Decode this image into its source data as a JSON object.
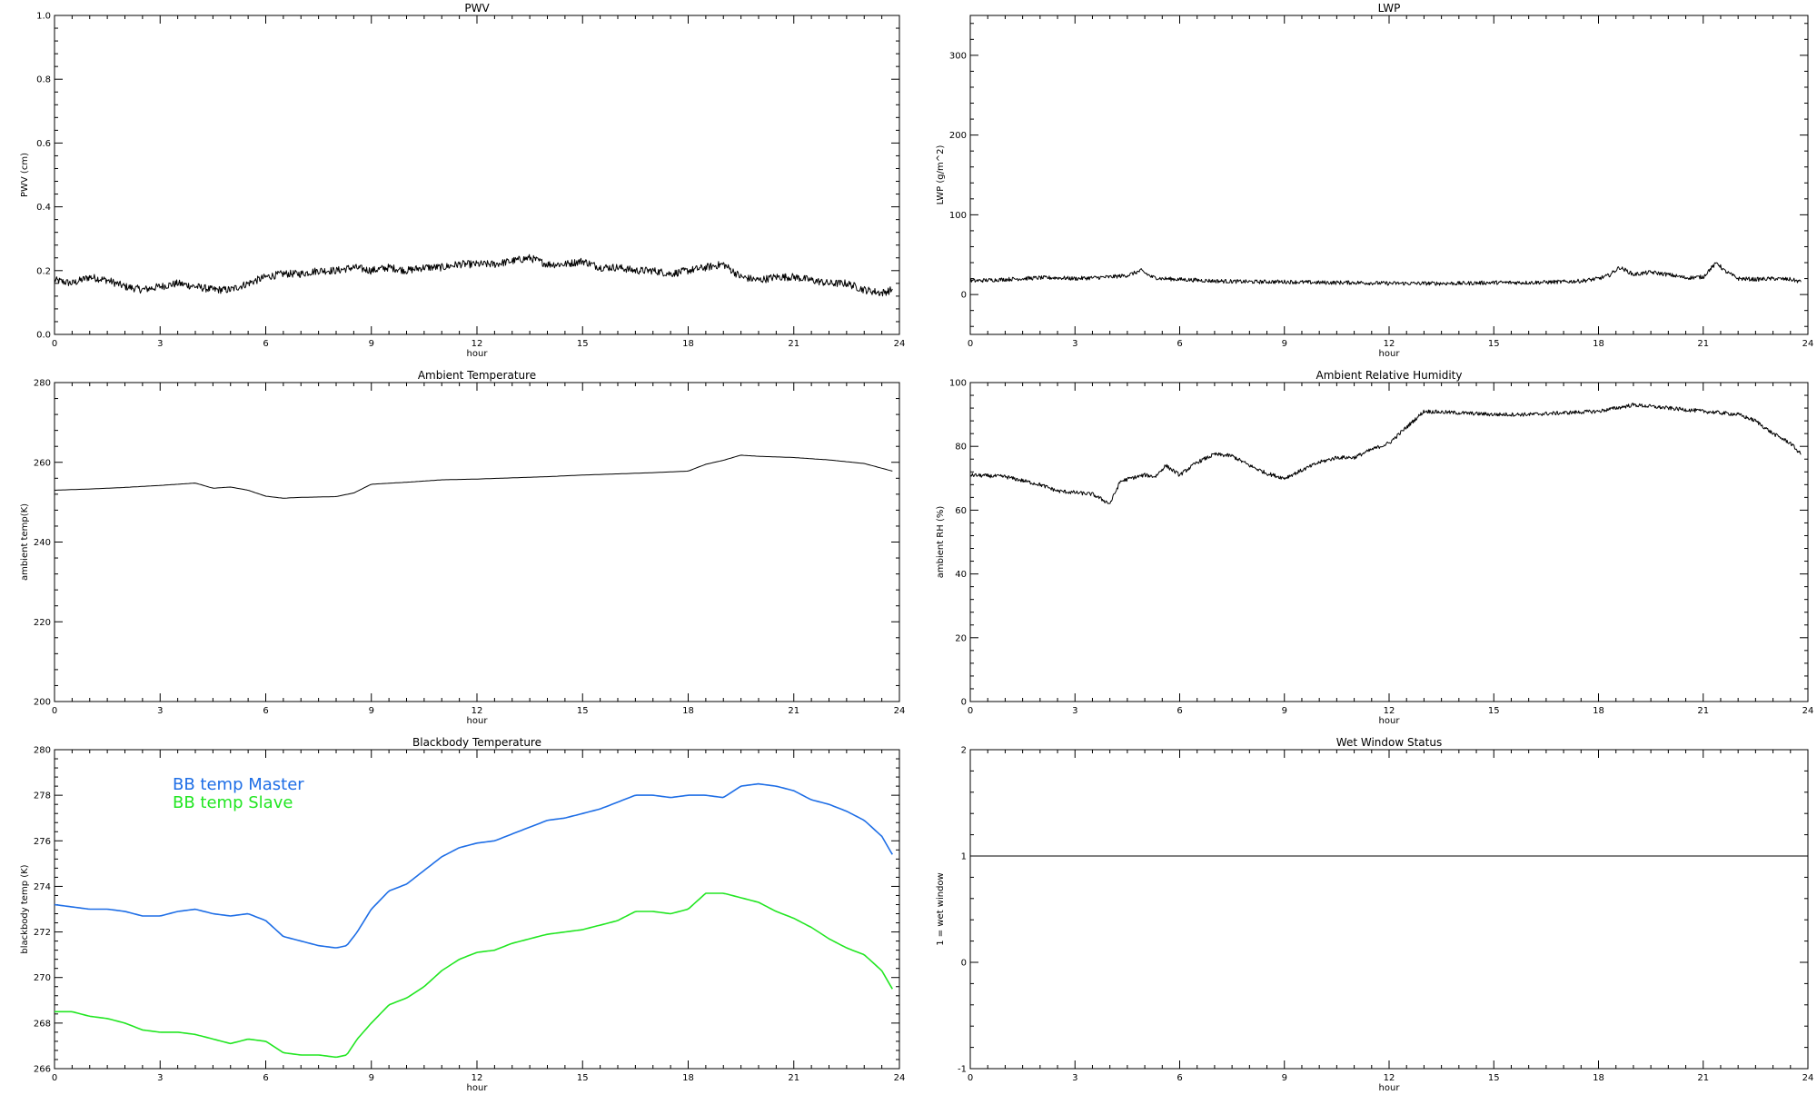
{
  "chart_data": [
    {
      "id": "pwv",
      "type": "line",
      "title": "PWV",
      "xlabel": "hour",
      "ylabel": "PWV (cm)",
      "xlim": [
        0,
        24
      ],
      "ylim": [
        0.0,
        1.0
      ],
      "xticks": [
        0,
        3,
        6,
        9,
        12,
        15,
        18,
        21,
        24
      ],
      "xtick_labels": [
        "0",
        "3",
        "6",
        "9",
        "12",
        "15",
        "18",
        "21",
        "24"
      ],
      "yticks": [
        0.0,
        0.2,
        0.4,
        0.6,
        0.8,
        1.0
      ],
      "ytick_labels": [
        "0.0",
        "0.2",
        "0.4",
        "0.6",
        "0.8",
        "1.0"
      ],
      "noise": 0.012,
      "series": [
        {
          "color": "#000000",
          "x": [
            0,
            0.5,
            1,
            1.5,
            2,
            2.5,
            3,
            3.5,
            4,
            4.5,
            5,
            5.5,
            6,
            6.5,
            7,
            7.5,
            8,
            8.5,
            9,
            9.5,
            10,
            10.5,
            11,
            11.5,
            12,
            12.5,
            13,
            13.5,
            14,
            14.5,
            15,
            15.5,
            16,
            16.5,
            17,
            17.5,
            18,
            18.5,
            19,
            19.5,
            20,
            20.5,
            21,
            21.5,
            22,
            22.5,
            23,
            23.5,
            23.8
          ],
          "y": [
            0.17,
            0.16,
            0.18,
            0.17,
            0.15,
            0.14,
            0.15,
            0.16,
            0.15,
            0.14,
            0.14,
            0.16,
            0.18,
            0.19,
            0.19,
            0.2,
            0.2,
            0.21,
            0.2,
            0.21,
            0.2,
            0.21,
            0.21,
            0.22,
            0.22,
            0.22,
            0.23,
            0.24,
            0.22,
            0.22,
            0.23,
            0.21,
            0.21,
            0.2,
            0.2,
            0.19,
            0.2,
            0.21,
            0.22,
            0.18,
            0.17,
            0.18,
            0.18,
            0.17,
            0.16,
            0.16,
            0.14,
            0.13,
            0.14
          ]
        }
      ]
    },
    {
      "id": "lwp",
      "type": "line",
      "title": "LWP",
      "xlabel": "hour",
      "ylabel": "LWP (g/m^2)",
      "xlim": [
        0,
        24
      ],
      "ylim": [
        -50,
        350
      ],
      "xticks": [
        0,
        3,
        6,
        9,
        12,
        15,
        18,
        21,
        24
      ],
      "xtick_labels": [
        "0",
        "3",
        "6",
        "9",
        "12",
        "15",
        "18",
        "21",
        "24"
      ],
      "yticks": [
        0,
        100,
        200,
        300
      ],
      "ytick_labels": [
        "0",
        "100",
        "200",
        "300"
      ],
      "noise": 2.5,
      "series": [
        {
          "color": "#000000",
          "x": [
            0,
            0.5,
            1,
            1.5,
            2,
            2.5,
            3,
            3.5,
            4,
            4.5,
            4.9,
            5.2,
            5.5,
            6,
            7,
            8,
            9,
            10,
            11,
            12,
            13,
            14,
            15,
            16,
            17,
            17.5,
            18,
            18.3,
            18.6,
            18.8,
            19,
            19.5,
            20,
            20.5,
            21,
            21.2,
            21.4,
            21.6,
            22,
            22.5,
            23,
            23.5,
            23.8
          ],
          "y": [
            17,
            18,
            19,
            20,
            21,
            21,
            20,
            21,
            22,
            24,
            30,
            22,
            20,
            19,
            17,
            16,
            16,
            15,
            15,
            14,
            14,
            14,
            15,
            15,
            16,
            17,
            20,
            24,
            34,
            30,
            25,
            28,
            25,
            21,
            22,
            32,
            40,
            30,
            20,
            19,
            20,
            19,
            16
          ]
        }
      ]
    },
    {
      "id": "ambient-temp",
      "type": "line",
      "title": "Ambient Temperature",
      "xlabel": "hour",
      "ylabel": "ambient temp(K)",
      "xlim": [
        0,
        24
      ],
      "ylim": [
        200,
        280
      ],
      "xticks": [
        0,
        3,
        6,
        9,
        12,
        15,
        18,
        21,
        24
      ],
      "xtick_labels": [
        "0",
        "3",
        "6",
        "9",
        "12",
        "15",
        "18",
        "21",
        "24"
      ],
      "yticks": [
        200,
        220,
        240,
        260,
        280
      ],
      "ytick_labels": [
        "200",
        "220",
        "240",
        "260",
        "280"
      ],
      "noise": 0,
      "series": [
        {
          "color": "#000000",
          "x": [
            0,
            1,
            2,
            3,
            4,
            4.5,
            5,
            5.5,
            6,
            6.5,
            7,
            7.5,
            8,
            8.5,
            9,
            10,
            11,
            12,
            13,
            14,
            15,
            16,
            17,
            18,
            18.5,
            19,
            19.5,
            20,
            21,
            22,
            23,
            23.8
          ],
          "y": [
            253,
            253.3,
            253.7,
            254.2,
            254.8,
            253.5,
            253.8,
            253,
            251.5,
            251,
            251.2,
            251.3,
            251.4,
            252.3,
            254.5,
            255,
            255.6,
            255.8,
            256.1,
            256.4,
            256.8,
            257.1,
            257.4,
            257.8,
            259.5,
            260.5,
            261.8,
            261.5,
            261.2,
            260.6,
            259.7,
            257.8
          ]
        }
      ]
    },
    {
      "id": "ambient-rh",
      "type": "line",
      "title": "Ambient Relative Humidity",
      "xlabel": "hour",
      "ylabel": "ambient RH (%)",
      "xlim": [
        0,
        24
      ],
      "ylim": [
        0,
        100
      ],
      "xticks": [
        0,
        3,
        6,
        9,
        12,
        15,
        18,
        21,
        24
      ],
      "xtick_labels": [
        "0",
        "3",
        "6",
        "9",
        "12",
        "15",
        "18",
        "21",
        "24"
      ],
      "yticks": [
        0,
        20,
        40,
        60,
        80,
        100
      ],
      "ytick_labels": [
        "0",
        "20",
        "40",
        "60",
        "80",
        "100"
      ],
      "noise": 0.6,
      "series": [
        {
          "color": "#000000",
          "x": [
            0,
            1,
            2,
            2.5,
            3,
            3.5,
            4,
            4.3,
            4.6,
            5,
            5.3,
            5.6,
            6,
            6.5,
            7,
            7.5,
            8,
            8.5,
            9,
            9.5,
            10,
            10.5,
            11,
            11.5,
            12,
            12.5,
            13,
            14,
            15,
            16,
            17,
            18,
            18.5,
            19,
            19.5,
            20,
            21,
            22,
            22.5,
            23,
            23.5,
            23.8
          ],
          "y": [
            71,
            70.5,
            68,
            66,
            65.5,
            65,
            62,
            69,
            70,
            71,
            70.5,
            74,
            71,
            75,
            77.5,
            77,
            74,
            71.5,
            70,
            72.5,
            75,
            76.5,
            76.5,
            79,
            81,
            86,
            91,
            90.5,
            90,
            90,
            90.5,
            91,
            92,
            93,
            92.5,
            92,
            91,
            90,
            88,
            84,
            81,
            77.5
          ]
        }
      ]
    },
    {
      "id": "blackbody-temp",
      "type": "line",
      "title": "Blackbody Temperature",
      "xlabel": "hour",
      "ylabel": "blackbody temp (K)",
      "xlim": [
        0,
        24
      ],
      "ylim": [
        266,
        280
      ],
      "xticks": [
        0,
        3,
        6,
        9,
        12,
        15,
        18,
        21,
        24
      ],
      "xtick_labels": [
        "0",
        "3",
        "6",
        "9",
        "12",
        "15",
        "18",
        "21",
        "24"
      ],
      "yticks": [
        266,
        268,
        270,
        272,
        274,
        276,
        278,
        280
      ],
      "ytick_labels": [
        "266",
        "268",
        "270",
        "272",
        "274",
        "276",
        "278",
        "280"
      ],
      "noise": 0,
      "legend": "top-left",
      "series": [
        {
          "name": "BB temp Master",
          "color": "#1e6ee6",
          "x": [
            0,
            0.5,
            1,
            1.5,
            2,
            2.5,
            3,
            3.5,
            4,
            4.5,
            5,
            5.5,
            6,
            6.5,
            7,
            7.5,
            8,
            8.3,
            8.6,
            9,
            9.5,
            10,
            10.5,
            11,
            11.5,
            12,
            12.5,
            13,
            13.5,
            14,
            14.5,
            15,
            15.5,
            16,
            16.5,
            17,
            17.5,
            18,
            18.5,
            19,
            19.5,
            20,
            20.5,
            21,
            21.5,
            22,
            22.5,
            23,
            23.5,
            23.8
          ],
          "y": [
            273.2,
            273.1,
            273.0,
            273.0,
            272.9,
            272.7,
            272.7,
            272.9,
            273.0,
            272.8,
            272.7,
            272.8,
            272.5,
            271.8,
            271.6,
            271.4,
            271.3,
            271.4,
            272.0,
            273.0,
            273.8,
            274.1,
            274.7,
            275.3,
            275.7,
            275.9,
            276.0,
            276.3,
            276.6,
            276.9,
            277.0,
            277.2,
            277.4,
            277.7,
            278.0,
            278.0,
            277.9,
            278.0,
            278.0,
            277.9,
            278.4,
            278.5,
            278.4,
            278.2,
            277.8,
            277.6,
            277.3,
            276.9,
            276.2,
            275.4
          ]
        },
        {
          "name": "BB temp Slave",
          "color": "#22e622",
          "x": [
            0,
            0.5,
            1,
            1.5,
            2,
            2.5,
            3,
            3.5,
            4,
            4.5,
            5,
            5.5,
            6,
            6.5,
            7,
            7.5,
            8,
            8.3,
            8.6,
            9,
            9.5,
            10,
            10.5,
            11,
            11.5,
            12,
            12.5,
            13,
            13.5,
            14,
            14.5,
            15,
            15.5,
            16,
            16.5,
            17,
            17.5,
            18,
            18.5,
            19,
            19.5,
            20,
            20.5,
            21,
            21.5,
            22,
            22.5,
            23,
            23.5,
            23.8
          ],
          "y": [
            268.5,
            268.5,
            268.3,
            268.2,
            268.0,
            267.7,
            267.6,
            267.6,
            267.5,
            267.3,
            267.1,
            267.3,
            267.2,
            266.7,
            266.6,
            266.6,
            266.5,
            266.6,
            267.3,
            268.0,
            268.8,
            269.1,
            269.6,
            270.3,
            270.8,
            271.1,
            271.2,
            271.5,
            271.7,
            271.9,
            272.0,
            272.1,
            272.3,
            272.5,
            272.9,
            272.9,
            272.8,
            273.0,
            273.7,
            273.7,
            273.5,
            273.3,
            272.9,
            272.6,
            272.2,
            271.7,
            271.3,
            271.0,
            270.3,
            269.5
          ]
        }
      ]
    },
    {
      "id": "wet-window",
      "type": "line",
      "title": "Wet Window Status",
      "xlabel": "hour",
      "ylabel": "1 = wet window",
      "xlim": [
        0,
        24
      ],
      "ylim": [
        -1,
        2
      ],
      "xticks": [
        0,
        3,
        6,
        9,
        12,
        15,
        18,
        21,
        24
      ],
      "xtick_labels": [
        "0",
        "3",
        "6",
        "9",
        "12",
        "15",
        "18",
        "21",
        "24"
      ],
      "yticks": [
        -1,
        0,
        1,
        2
      ],
      "ytick_labels": [
        "-1",
        "0",
        "1",
        "2"
      ],
      "noise": 0,
      "series": [
        {
          "color": "#000000",
          "x": [
            0,
            24
          ],
          "y": [
            1,
            1
          ]
        }
      ]
    }
  ]
}
